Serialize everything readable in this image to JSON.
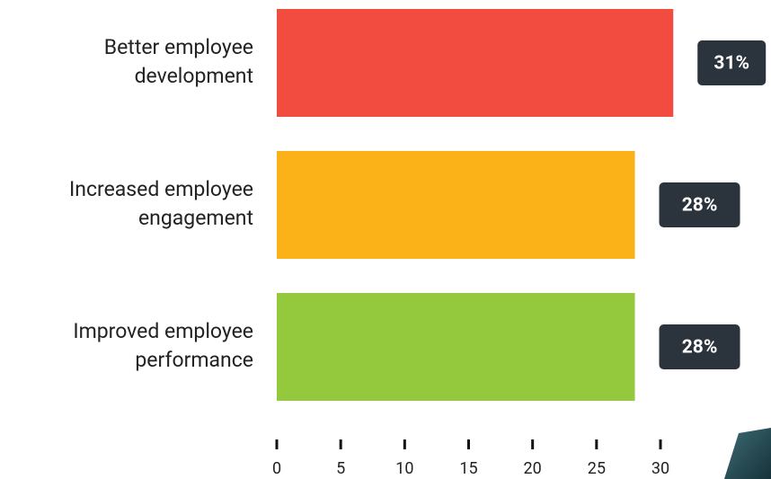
{
  "chart_data": {
    "type": "hbar",
    "categories": [
      [
        "Better employee",
        "development"
      ],
      [
        "Increased employee",
        "engagement"
      ],
      [
        "Improved employee",
        "performance"
      ]
    ],
    "values": [
      31,
      28,
      28
    ],
    "value_labels": [
      "31%",
      "28%",
      "28%"
    ],
    "colors": [
      "#f24b3f",
      "#fbb118",
      "#95c93d"
    ],
    "xlim": [
      0,
      30
    ],
    "xticks": [
      0,
      5,
      10,
      15,
      20,
      25,
      30
    ]
  }
}
